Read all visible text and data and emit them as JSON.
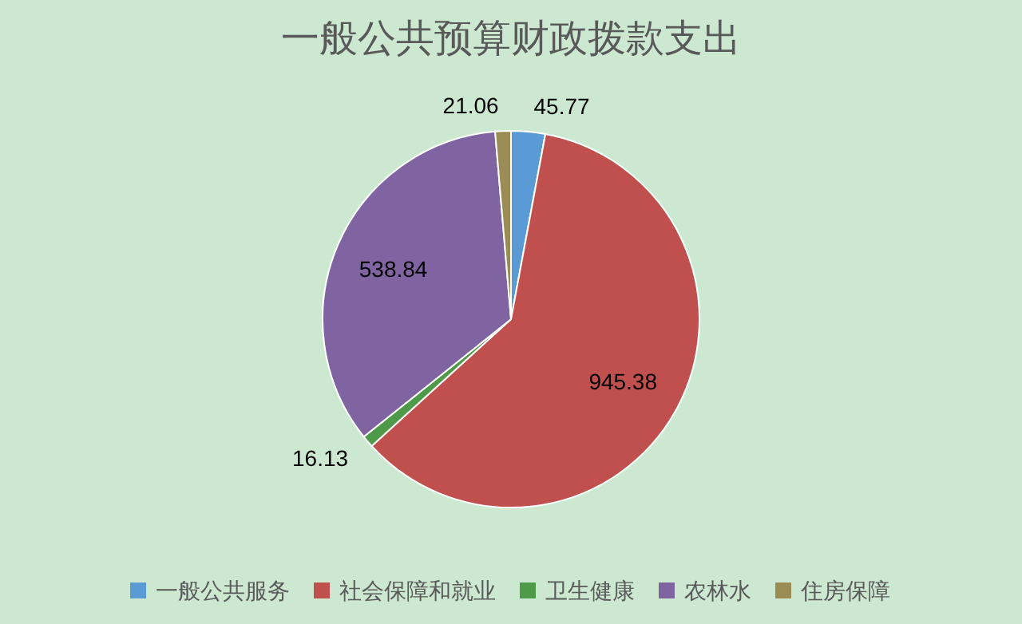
{
  "chart_data": {
    "type": "pie",
    "title": "一般公共预算财政拨款支出",
    "categories": [
      "一般公共服务",
      "社会保障和就业",
      "卫生健康",
      "农林水",
      "住房保障"
    ],
    "values": [
      45.77,
      945.38,
      16.13,
      538.84,
      21.06
    ],
    "colors": [
      "#5b9bd5",
      "#c0504d",
      "#4f9a49",
      "#8064a2",
      "#9b8b55"
    ],
    "data_labels": true,
    "legend": "bottom"
  }
}
